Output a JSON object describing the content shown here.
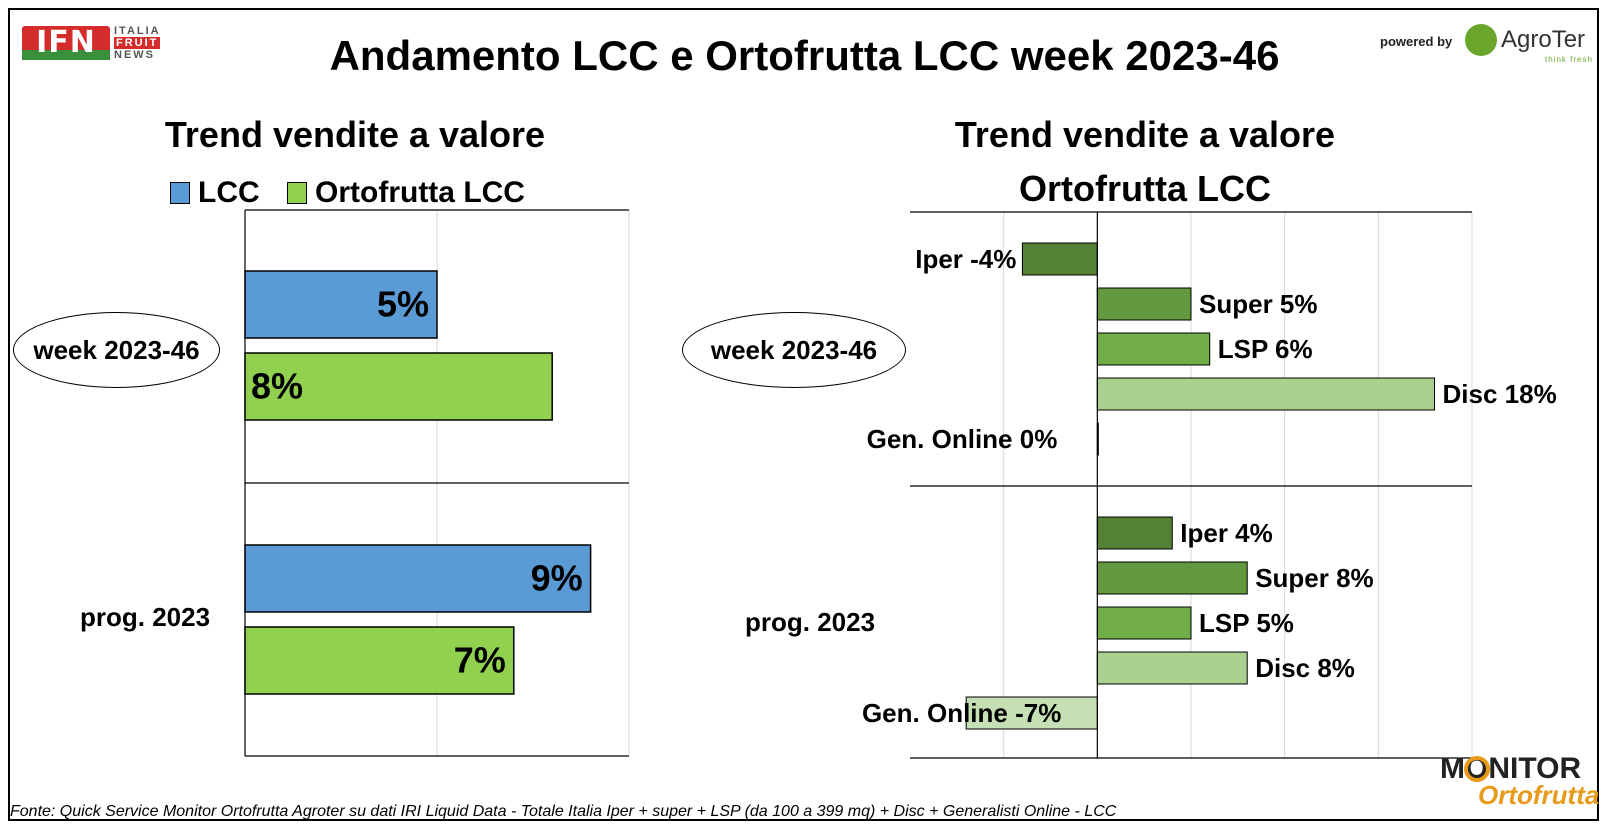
{
  "header": {
    "logo_ifn": "IFN",
    "logo_ifn_sub": [
      "ITALIA",
      "FRUIT",
      "NEWS"
    ],
    "title": "Andamento LCC e Ortofrutta LCC week 2023-46",
    "powered_by": "powered by",
    "agroter_name": "AgroTer",
    "agroter_tag": "think fresh"
  },
  "footer": {
    "source": "Fonte: Quick Service Monitor Ortofrutta Agroter su dati IRI Liquid Data - Totale Italia Iper + super + LSP (da 100 a 399 mq) + Disc + Generalisti Online - LCC",
    "monitor_top": "MONITOR",
    "monitor_bottom": "Ortofrutta"
  },
  "colors": {
    "lcc": "#5b9bd5",
    "ortofrutta": "#92d050",
    "iper": "#548235",
    "super": "#62993e",
    "lsp": "#70ad47",
    "disc": "#a9d08e",
    "gen_online": "#c5e0b4"
  },
  "chart_data": [
    {
      "type": "bar",
      "orientation": "horizontal",
      "title": "Trend vendite a valore",
      "categories": [
        "week 2023-46",
        "prog. 2023"
      ],
      "series": [
        {
          "name": "LCC",
          "values": [
            5,
            9
          ],
          "labels": [
            "5%",
            "9%"
          ]
        },
        {
          "name": "Ortofrutta LCC",
          "values": [
            8,
            7
          ],
          "labels": [
            "8%",
            "7%"
          ]
        }
      ],
      "xlim": [
        0,
        10
      ],
      "grid": true,
      "legend": "top"
    },
    {
      "type": "bar",
      "orientation": "horizontal",
      "title": [
        "Trend vendite a valore",
        "Ortofrutta LCC"
      ],
      "categories": [
        "week 2023-46",
        "prog. 2023"
      ],
      "groups": [
        {
          "category": "week 2023-46",
          "bars": [
            {
              "name": "Iper",
              "value": -4,
              "label": "Iper -4%"
            },
            {
              "name": "Super",
              "value": 5,
              "label": "Super 5%"
            },
            {
              "name": "LSP",
              "value": 6,
              "label": "LSP 6%"
            },
            {
              "name": "Disc",
              "value": 18,
              "label": "Disc 18%"
            },
            {
              "name": "Gen. Online",
              "value": 0,
              "label": "Gen. Online 0%"
            }
          ]
        },
        {
          "category": "prog. 2023",
          "bars": [
            {
              "name": "Iper",
              "value": 4,
              "label": "Iper 4%"
            },
            {
              "name": "Super",
              "value": 8,
              "label": "Super 8%"
            },
            {
              "name": "LSP",
              "value": 5,
              "label": "LSP 5%"
            },
            {
              "name": "Disc",
              "value": 8,
              "label": "Disc 8%"
            },
            {
              "name": "Gen. Online",
              "value": -7,
              "label": "Gen. Online -7%"
            }
          ]
        }
      ],
      "xlim": [
        -10,
        20
      ],
      "grid": true,
      "legend": "none"
    }
  ]
}
